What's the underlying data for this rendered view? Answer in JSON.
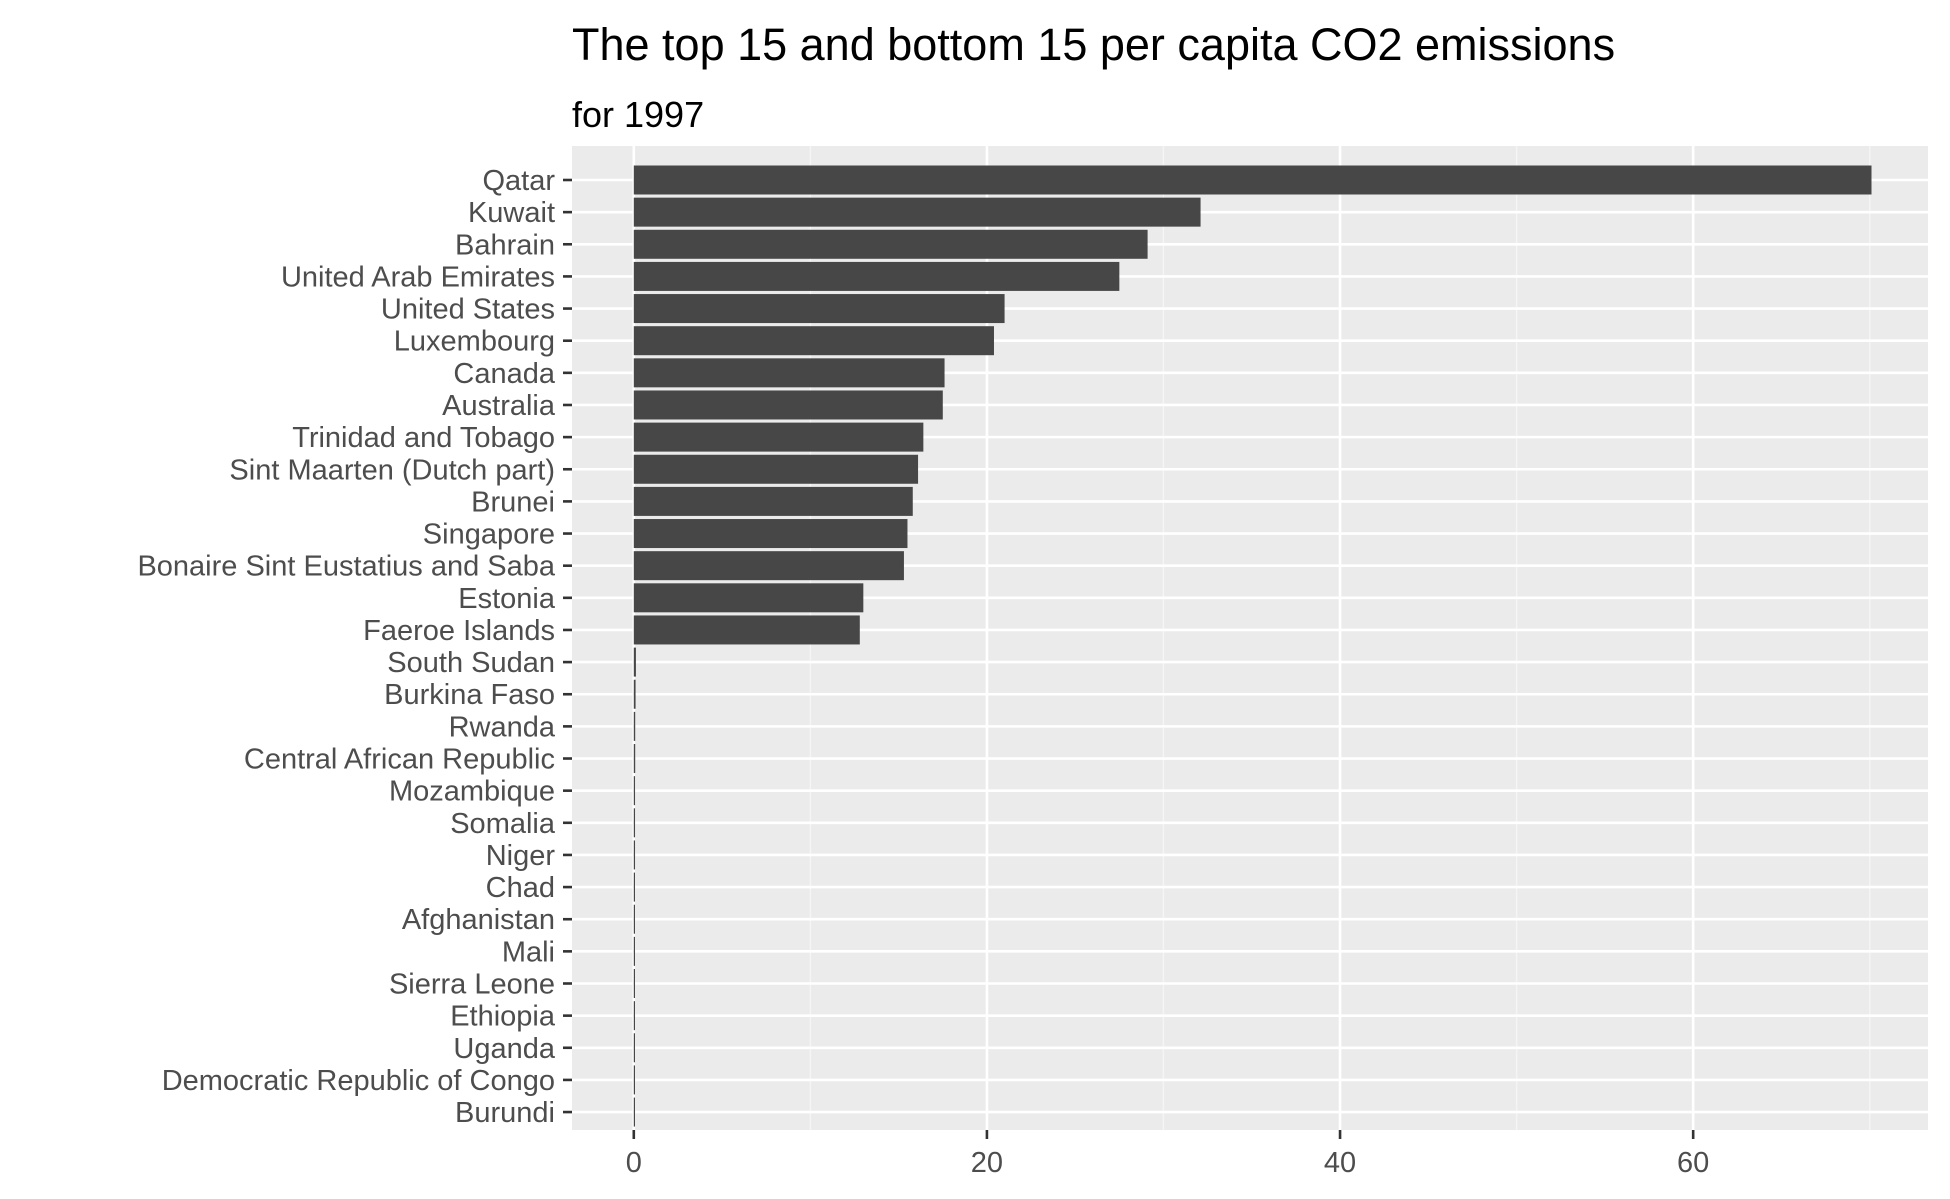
{
  "chart_data": {
    "type": "bar",
    "orientation": "horizontal",
    "title": "The top 15 and bottom 15 per capita CO2 emissions",
    "subtitle": "for 1997",
    "xlabel": "",
    "ylabel": "",
    "xlim": [
      -3.5,
      73.3
    ],
    "x_ticks": [
      0,
      20,
      40,
      60
    ],
    "grid": true,
    "legend": "none",
    "categories": [
      "Qatar",
      "Kuwait",
      "Bahrain",
      "United Arab Emirates",
      "United States",
      "Luxembourg",
      "Canada",
      "Australia",
      "Trinidad and Tobago",
      "Sint Maarten (Dutch part)",
      "Brunei",
      "Singapore",
      "Bonaire Sint Eustatius and Saba",
      "Estonia",
      "Faeroe Islands",
      "South Sudan",
      "Burkina Faso",
      "Rwanda",
      "Central African Republic",
      "Mozambique",
      "Somalia",
      "Niger",
      "Chad",
      "Afghanistan",
      "Mali",
      "Sierra Leone",
      "Ethiopia",
      "Uganda",
      "Democratic Republic of Congo",
      "Burundi"
    ],
    "values": [
      70.1,
      32.1,
      29.1,
      27.5,
      21.0,
      20.4,
      17.6,
      17.5,
      16.4,
      16.1,
      15.8,
      15.5,
      15.3,
      13.0,
      12.8,
      0.12,
      0.1,
      0.08,
      0.08,
      0.07,
      0.07,
      0.07,
      0.06,
      0.06,
      0.05,
      0.05,
      0.05,
      0.05,
      0.04,
      0.03
    ],
    "colors": {
      "bar": "#474747",
      "panel": "#ebebeb",
      "grid_major": "#ffffff",
      "grid_minor": "#f5f5f5",
      "tick_text": "#4d4d4d",
      "tick_mark": "#333333"
    }
  }
}
